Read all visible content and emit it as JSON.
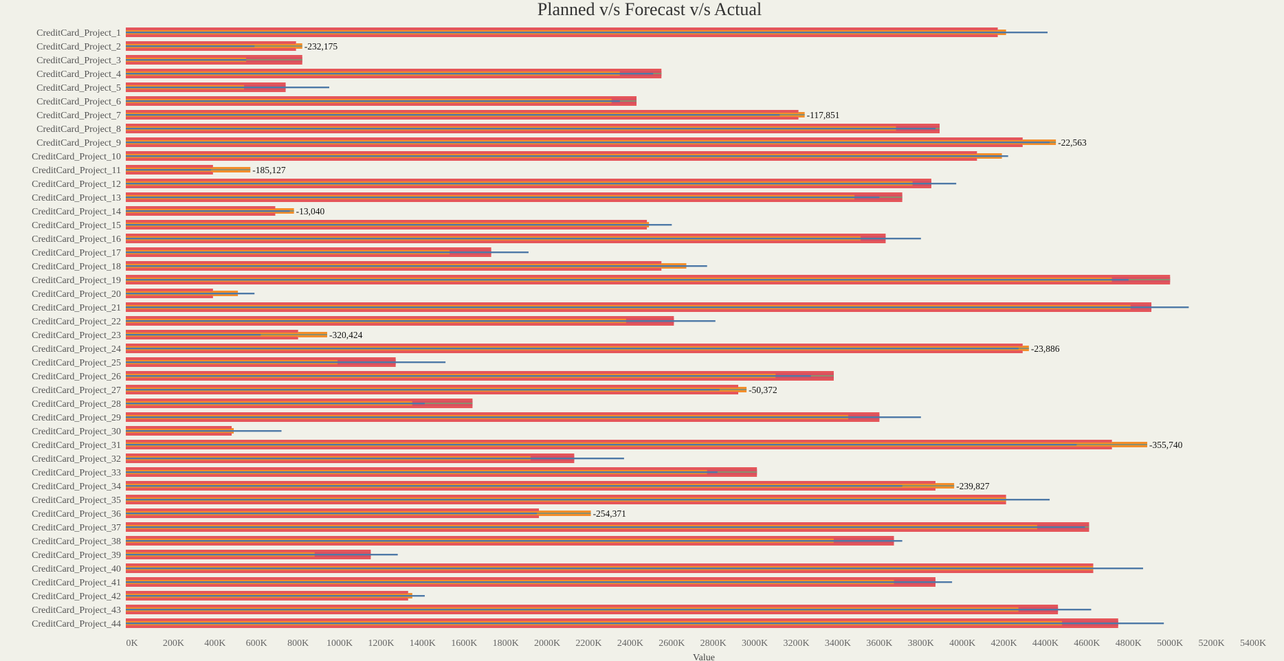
{
  "chart_data": {
    "type": "bar",
    "title": "Planned v/s Forecast v/s Actual",
    "xlabel": "Value",
    "ylabel": "",
    "xlim": [
      0,
      5400000
    ],
    "x_ticks": [
      "0K",
      "200K",
      "400K",
      "600K",
      "800K",
      "1000K",
      "1200K",
      "1400K",
      "1600K",
      "1800K",
      "2000K",
      "2200K",
      "2400K",
      "2600K",
      "2800K",
      "3000K",
      "3200K",
      "3400K",
      "3600K",
      "3800K",
      "4000K",
      "4200K",
      "4400K",
      "4600K",
      "4800K",
      "5000K",
      "5200K",
      "5400K"
    ],
    "grid": false,
    "series_colors": {
      "red": "#e5565a",
      "orange": "#f28e2b",
      "line": "#4e79a7",
      "inner": "#8b8f6e"
    },
    "categories": [
      "CreditCard_Project_1",
      "CreditCard_Project_2",
      "CreditCard_Project_3",
      "CreditCard_Project_4",
      "CreditCard_Project_5",
      "CreditCard_Project_6",
      "CreditCard_Project_7",
      "CreditCard_Project_8",
      "CreditCard_Project_9",
      "CreditCard_Project_10",
      "CreditCard_Project_11",
      "CreditCard_Project_12",
      "CreditCard_Project_13",
      "CreditCard_Project_14",
      "CreditCard_Project_15",
      "CreditCard_Project_16",
      "CreditCard_Project_17",
      "CreditCard_Project_18",
      "CreditCard_Project_19",
      "CreditCard_Project_20",
      "CreditCard_Project_21",
      "CreditCard_Project_22",
      "CreditCard_Project_23",
      "CreditCard_Project_24",
      "CreditCard_Project_25",
      "CreditCard_Project_26",
      "CreditCard_Project_27",
      "CreditCard_Project_28",
      "CreditCard_Project_29",
      "CreditCard_Project_30",
      "CreditCard_Project_31",
      "CreditCard_Project_32",
      "CreditCard_Project_33",
      "CreditCard_Project_34",
      "CreditCard_Project_35",
      "CreditCard_Project_36",
      "CreditCard_Project_37",
      "CreditCard_Project_38",
      "CreditCard_Project_39",
      "CreditCard_Project_40",
      "CreditCard_Project_41",
      "CreditCard_Project_42",
      "CreditCard_Project_43",
      "CreditCard_Project_44"
    ],
    "rows": [
      {
        "a": 4200000,
        "b": 4240000,
        "c": 4440000,
        "d": null
      },
      {
        "a": 820000,
        "b": 850000,
        "c": 620000,
        "d": "-232,175"
      },
      {
        "a": 850000,
        "b": 580000,
        "c": 580000,
        "d": null
      },
      {
        "a": 2580000,
        "b": 2380000,
        "c": 2540000,
        "d": null
      },
      {
        "a": 770000,
        "b": 570000,
        "c": 980000,
        "d": null
      },
      {
        "a": 2460000,
        "b": 2340000,
        "c": 2380000,
        "d": null
      },
      {
        "a": 3240000,
        "b": 3270000,
        "c": 3150000,
        "d": "-117,851"
      },
      {
        "a": 3920000,
        "b": 3710000,
        "c": 3900000,
        "d": null
      },
      {
        "a": 4320000,
        "b": 4480000,
        "c": 4450000,
        "d": "-22,563"
      },
      {
        "a": 4100000,
        "b": 4220000,
        "c": 4250000,
        "d": null
      },
      {
        "a": 420000,
        "b": 600000,
        "c": 410000,
        "d": "-185,127"
      },
      {
        "a": 3880000,
        "b": 3790000,
        "c": 4000000,
        "d": null
      },
      {
        "a": 3740000,
        "b": 3510000,
        "c": 3630000,
        "d": null
      },
      {
        "a": 720000,
        "b": 810000,
        "c": 790000,
        "d": "-13,040"
      },
      {
        "a": 2510000,
        "b": 2520000,
        "c": 2630000,
        "d": null
      },
      {
        "a": 3660000,
        "b": 3540000,
        "c": 3830000,
        "d": null
      },
      {
        "a": 1760000,
        "b": 1560000,
        "c": 1940000,
        "d": null
      },
      {
        "a": 2580000,
        "b": 2700000,
        "c": 2800000,
        "d": null
      },
      {
        "a": 5030000,
        "b": 4750000,
        "c": 4830000,
        "d": null
      },
      {
        "a": 420000,
        "b": 540000,
        "c": 620000,
        "d": null
      },
      {
        "a": 4940000,
        "b": 4840000,
        "c": 5120000,
        "d": null
      },
      {
        "a": 2640000,
        "b": 2410000,
        "c": 2840000,
        "d": null
      },
      {
        "a": 830000,
        "b": 970000,
        "c": 650000,
        "d": "-320,424"
      },
      {
        "a": 4320000,
        "b": 4350000,
        "c": 4300000,
        "d": "-23,886"
      },
      {
        "a": 1300000,
        "b": 1020000,
        "c": 1540000,
        "d": null
      },
      {
        "a": 3410000,
        "b": 3130000,
        "c": 3300000,
        "d": null
      },
      {
        "a": 2950000,
        "b": 2990000,
        "c": 2860000,
        "d": "-50,372"
      },
      {
        "a": 1670000,
        "b": 1380000,
        "c": 1440000,
        "d": null
      },
      {
        "a": 3630000,
        "b": 3480000,
        "c": 3830000,
        "d": null
      },
      {
        "a": 510000,
        "b": 520000,
        "c": 750000,
        "d": null
      },
      {
        "a": 4750000,
        "b": 4920000,
        "c": 4580000,
        "d": "-355,740"
      },
      {
        "a": 2160000,
        "b": 1950000,
        "c": 2400000,
        "d": null
      },
      {
        "a": 3040000,
        "b": 2800000,
        "c": 2850000,
        "d": null
      },
      {
        "a": 3900000,
        "b": 3990000,
        "c": 3740000,
        "d": "-239,827"
      },
      {
        "a": 4240000,
        "b": 4240000,
        "c": 4450000,
        "d": null
      },
      {
        "a": 1990000,
        "b": 2240000,
        "c": 1980000,
        "d": "-254,371"
      },
      {
        "a": 4640000,
        "b": 4390000,
        "c": 4620000,
        "d": null
      },
      {
        "a": 3700000,
        "b": 3410000,
        "c": 3740000,
        "d": null
      },
      {
        "a": 1180000,
        "b": 910000,
        "c": 1310000,
        "d": null
      },
      {
        "a": 4660000,
        "b": 4660000,
        "c": 4900000,
        "d": null
      },
      {
        "a": 3900000,
        "b": 3700000,
        "c": 3980000,
        "d": null
      },
      {
        "a": 1360000,
        "b": 1380000,
        "c": 1440000,
        "d": null
      },
      {
        "a": 4490000,
        "b": 4300000,
        "c": 4650000,
        "d": null
      },
      {
        "a": 4780000,
        "b": 4510000,
        "c": 5000000,
        "d": null
      }
    ]
  }
}
